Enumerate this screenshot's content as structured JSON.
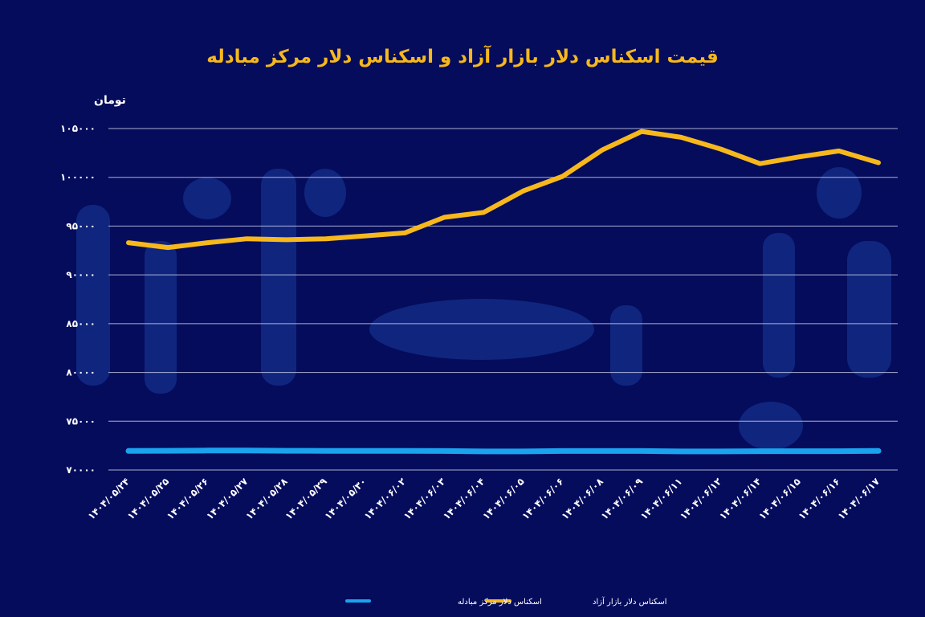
{
  "chart_data": {
    "type": "line",
    "title": "قیمت اسکناس دلار بازار آزاد و اسکناس دلار مرکز مبادله",
    "ylabel": "تومان",
    "ylim": [
      70000,
      105000
    ],
    "yticks": [
      70000,
      75000,
      80000,
      85000,
      90000,
      95000,
      100000,
      105000
    ],
    "ytick_labels": [
      "۷۰۰۰۰",
      "۷۵۰۰۰",
      "۸۰۰۰۰",
      "۸۵۰۰۰",
      "۹۰۰۰۰",
      "۹۵۰۰۰",
      "۱۰۰۰۰۰",
      "۱۰۵۰۰۰"
    ],
    "grid": true,
    "legend_position": "bottom",
    "categories": [
      "۱۴۰۴/۰۵/۲۴",
      "۱۴۰۴/۰۵/۲۵",
      "۱۴۰۴/۰۵/۲۶",
      "۱۴۰۴/۰۵/۲۷",
      "۱۴۰۴/۰۵/۲۸",
      "۱۴۰۴/۰۵/۲۹",
      "۱۴۰۴/۰۵/۳۰",
      "۱۴۰۴/۰۶/۰۲",
      "۱۴۰۴/۰۶/۰۳",
      "۱۴۰۴/۰۶/۰۴",
      "۱۴۰۴/۰۶/۰۵",
      "۱۴۰۴/۰۶/۰۶",
      "۱۴۰۴/۰۶/۰۸",
      "۱۴۰۴/۰۶/۰۹",
      "۱۴۰۴/۰۶/۱۱",
      "۱۴۰۴/۰۶/۱۲",
      "۱۴۰۴/۰۶/۱۴",
      "۱۴۰۴/۰۶/۱۵",
      "۱۴۰۴/۰۶/۱۶",
      "۱۴۰۴/۰۶/۱۷"
    ],
    "series": [
      {
        "name": "اسکناس دلار بازار آزاد",
        "color": "#f7b81c",
        "values": [
          93300,
          92800,
          93300,
          93700,
          93600,
          93700,
          94000,
          94300,
          95900,
          96400,
          98600,
          100100,
          102800,
          104700,
          104100,
          102900,
          101400,
          102100,
          102700,
          101500
        ]
      },
      {
        "name": "اسکناس دلار مرکز مبادله",
        "color": "#1aa3ee",
        "values": [
          71950,
          71970,
          71990,
          71990,
          71970,
          71960,
          71950,
          71950,
          71940,
          71900,
          71900,
          71940,
          71940,
          71940,
          71900,
          71900,
          71930,
          71930,
          71930,
          71950
        ]
      }
    ]
  }
}
